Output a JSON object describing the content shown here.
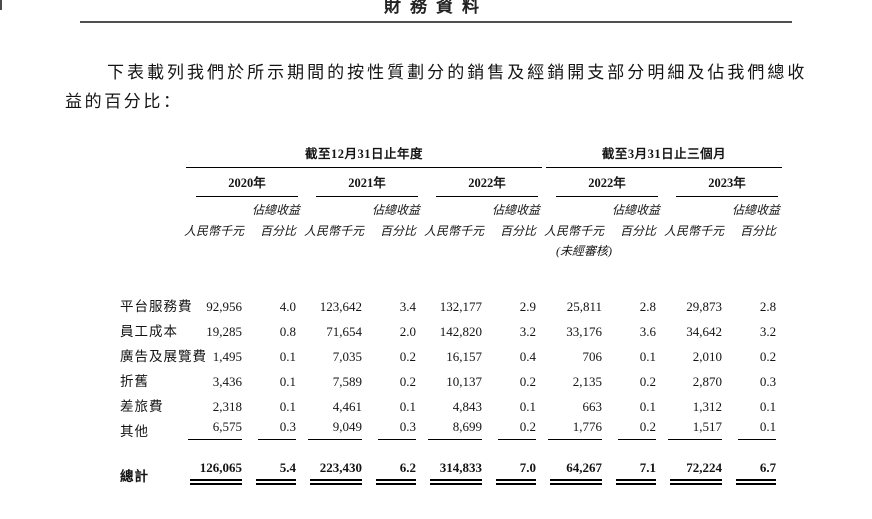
{
  "header": {
    "title": "財務資料"
  },
  "intro": {
    "text": "下表載列我們於所示期間的按性質劃分的銷售及經銷開支部分明細及佔我們總收益的百分比："
  },
  "table": {
    "period_groups": [
      {
        "label": "截至12月31日止年度",
        "years": [
          "2020年",
          "2021年",
          "2022年"
        ]
      },
      {
        "label": "截至3月31日止三個月",
        "years": [
          "2022年",
          "2023年"
        ]
      }
    ],
    "col_headers": {
      "amount": "人民幣千元",
      "pct_top": "佔總收益",
      "pct_bottom": "百分比",
      "unaudited_note": "(未經審核)"
    },
    "rows": [
      {
        "label": "平台服務費",
        "values": [
          "92,956",
          "4.0",
          "123,642",
          "3.4",
          "132,177",
          "2.9",
          "25,811",
          "2.8",
          "29,873",
          "2.8"
        ]
      },
      {
        "label": "員工成本",
        "values": [
          "19,285",
          "0.8",
          "71,654",
          "2.0",
          "142,820",
          "3.2",
          "33,176",
          "3.6",
          "34,642",
          "3.2"
        ]
      },
      {
        "label": "廣告及展覽費",
        "values": [
          "1,495",
          "0.1",
          "7,035",
          "0.2",
          "16,157",
          "0.4",
          "706",
          "0.1",
          "2,010",
          "0.2"
        ]
      },
      {
        "label": "折舊",
        "values": [
          "3,436",
          "0.1",
          "7,589",
          "0.2",
          "10,137",
          "0.2",
          "2,135",
          "0.2",
          "2,870",
          "0.3"
        ]
      },
      {
        "label": "差旅費",
        "values": [
          "2,318",
          "0.1",
          "4,461",
          "0.1",
          "4,843",
          "0.1",
          "663",
          "0.1",
          "1,312",
          "0.1"
        ]
      },
      {
        "label": "其他",
        "values": [
          "6,575",
          "0.3",
          "9,049",
          "0.3",
          "8,699",
          "0.2",
          "1,776",
          "0.2",
          "1,517",
          "0.1"
        ]
      }
    ],
    "total_row": {
      "label": "總計",
      "values": [
        "126,065",
        "5.4",
        "223,430",
        "6.2",
        "314,833",
        "7.0",
        "64,267",
        "7.1",
        "72,224",
        "6.7"
      ]
    }
  }
}
